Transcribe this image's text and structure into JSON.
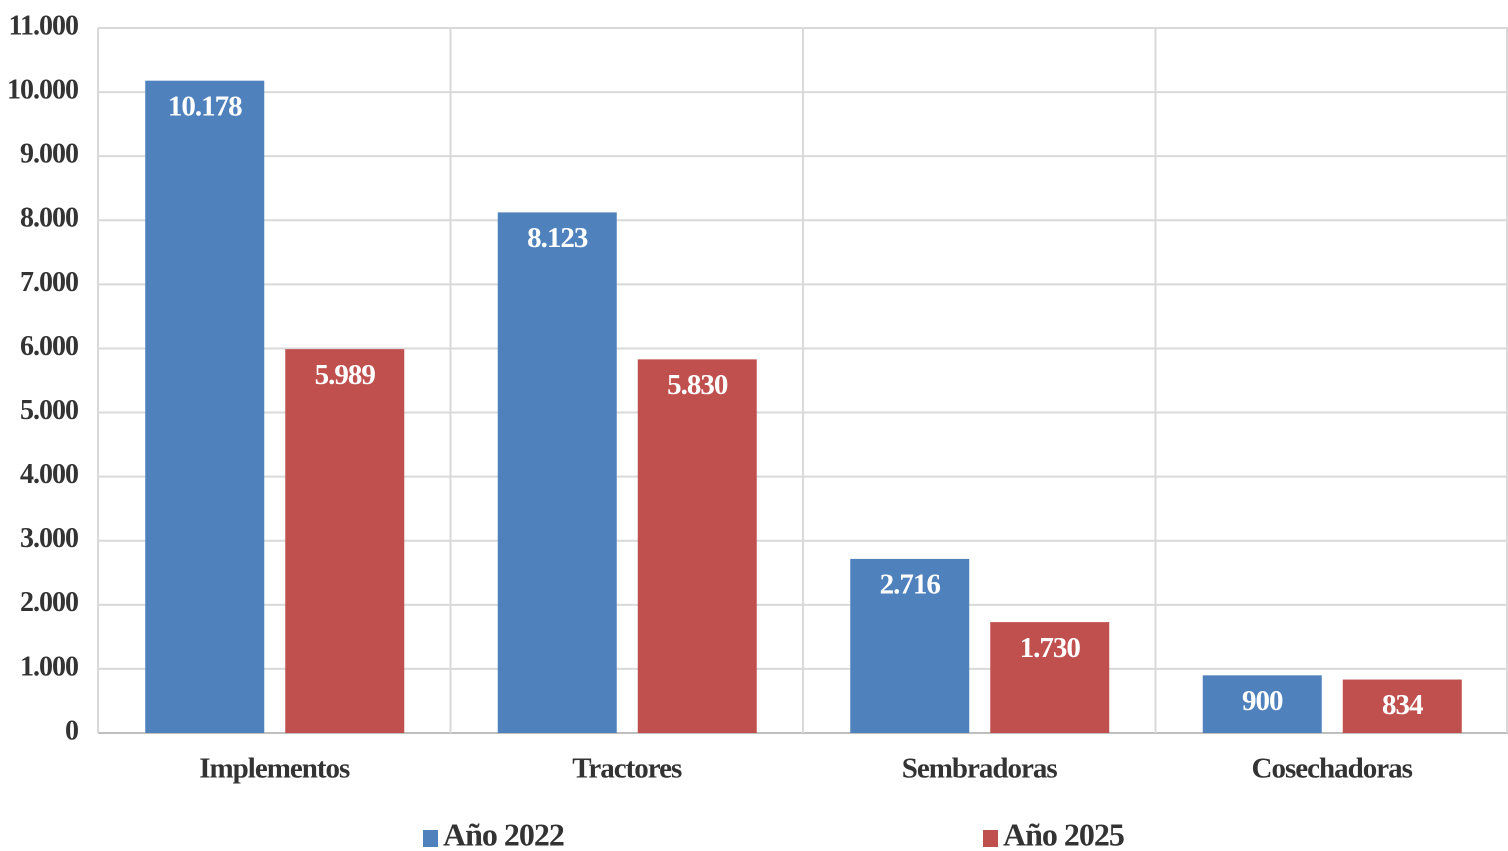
{
  "chart_data": {
    "type": "bar",
    "categories": [
      "Implementos",
      "Tractores",
      "Sembradoras",
      "Cosechadoras"
    ],
    "series": [
      {
        "name": "Año 2022",
        "color": "#4f81bd",
        "values": [
          10178,
          8123,
          2716,
          900
        ],
        "value_labels": [
          "10.178",
          "8.123",
          "2.716",
          "900"
        ]
      },
      {
        "name": "Año 2025",
        "color": "#c0504d",
        "values": [
          5989,
          5830,
          1730,
          834
        ],
        "value_labels": [
          "5.989",
          "5.830",
          "1.730",
          "834"
        ]
      }
    ],
    "ylim": [
      0,
      11000
    ],
    "yticks": [
      0,
      {
        "value": 1000,
        "label": "1.000"
      },
      {
        "value": 2000,
        "label": "2.000"
      },
      {
        "value": 3000,
        "label": "3.000"
      },
      {
        "value": 4000,
        "label": "4.000"
      },
      {
        "value": 5000,
        "label": "5.000"
      },
      {
        "value": 6000,
        "label": "6.000"
      },
      {
        "value": 7000,
        "label": "7.000"
      },
      {
        "value": 8000,
        "label": "8.000"
      },
      {
        "value": 9000,
        "label": "9.000"
      },
      {
        "value": 10000,
        "label": "10.000"
      },
      {
        "value": 11000,
        "label": "11.000"
      }
    ],
    "grid": true,
    "legend": "bottom"
  }
}
